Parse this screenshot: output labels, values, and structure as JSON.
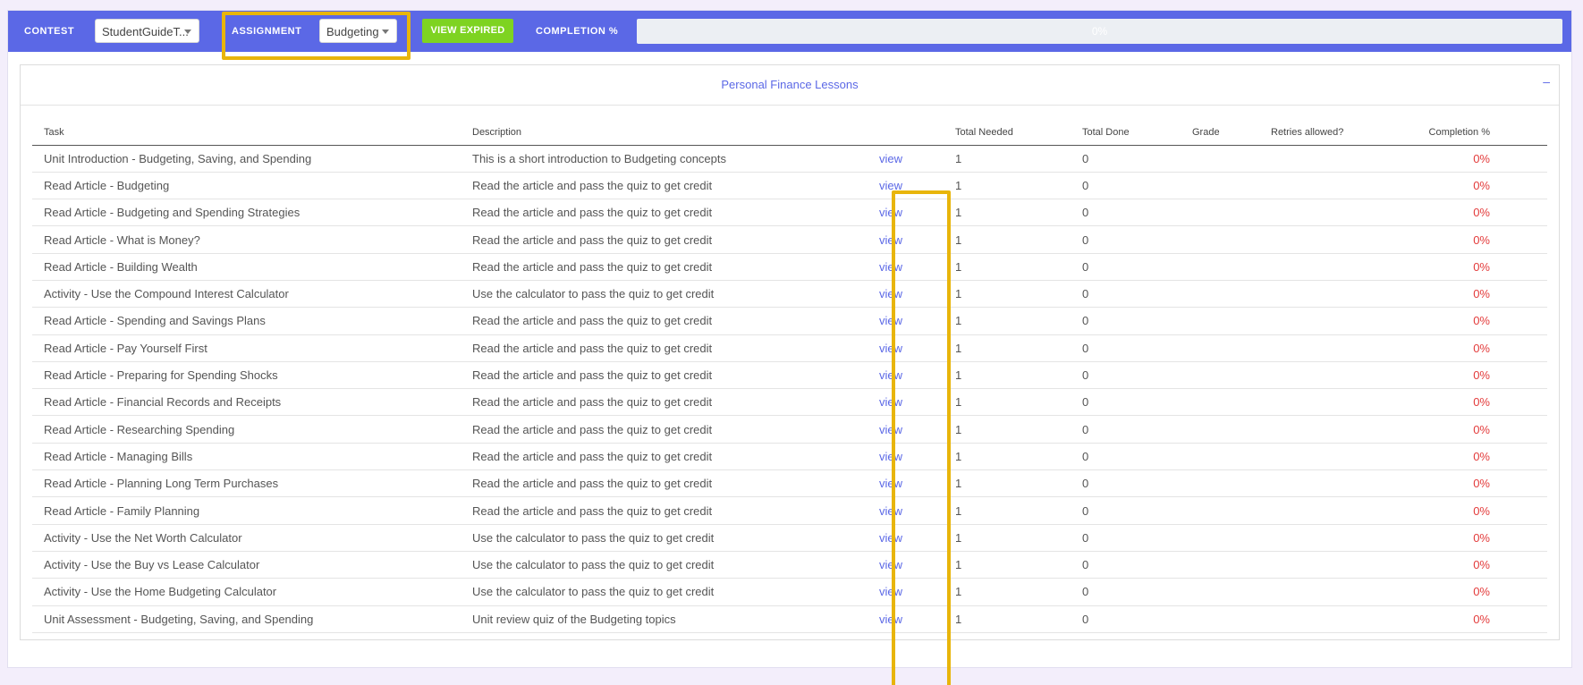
{
  "topbar": {
    "contest_label": "CONTEST",
    "contest_value": "StudentGuideT...",
    "assignment_label": "ASSIGNMENT",
    "assignment_value": "Budgeting",
    "view_expired_label": "VIEW EXPIRED",
    "completion_label": "COMPLETION %",
    "completion_value": "0%",
    "completion_fraction": 0
  },
  "panel": {
    "title": "Personal Finance Lessons",
    "collapse_symbol": "–"
  },
  "table": {
    "headers": [
      "Task",
      "Description",
      "",
      "Total Needed",
      "Total Done",
      "Grade",
      "Retries allowed?",
      "Completion %"
    ],
    "rows": [
      {
        "task": "Unit Introduction - Budgeting, Saving, and Spending",
        "description": "This is a short introduction to Budgeting concepts",
        "link": "view",
        "needed": "1",
        "done": "0",
        "grade": "",
        "retries": "",
        "completion": "0%"
      },
      {
        "task": "Read Article - Budgeting",
        "description": "Read the article and pass the quiz to get credit",
        "link": "view",
        "needed": "1",
        "done": "0",
        "grade": "",
        "retries": "",
        "completion": "0%"
      },
      {
        "task": "Read Article - Budgeting and Spending Strategies",
        "description": "Read the article and pass the quiz to get credit",
        "link": "view",
        "needed": "1",
        "done": "0",
        "grade": "",
        "retries": "",
        "completion": "0%"
      },
      {
        "task": "Read Article - What is Money?",
        "description": "Read the article and pass the quiz to get credit",
        "link": "view",
        "needed": "1",
        "done": "0",
        "grade": "",
        "retries": "",
        "completion": "0%"
      },
      {
        "task": "Read Article - Building Wealth",
        "description": "Read the article and pass the quiz to get credit",
        "link": "view",
        "needed": "1",
        "done": "0",
        "grade": "",
        "retries": "",
        "completion": "0%"
      },
      {
        "task": "Activity - Use the Compound Interest Calculator",
        "description": "Use the calculator to pass the quiz to get credit",
        "link": "view",
        "needed": "1",
        "done": "0",
        "grade": "",
        "retries": "",
        "completion": "0%"
      },
      {
        "task": "Read Article - Spending and Savings Plans",
        "description": "Read the article and pass the quiz to get credit",
        "link": "view",
        "needed": "1",
        "done": "0",
        "grade": "",
        "retries": "",
        "completion": "0%"
      },
      {
        "task": "Read Article - Pay Yourself First",
        "description": "Read the article and pass the quiz to get credit",
        "link": "view",
        "needed": "1",
        "done": "0",
        "grade": "",
        "retries": "",
        "completion": "0%"
      },
      {
        "task": "Read Article - Preparing for Spending Shocks",
        "description": "Read the article and pass the quiz to get credit",
        "link": "view",
        "needed": "1",
        "done": "0",
        "grade": "",
        "retries": "",
        "completion": "0%"
      },
      {
        "task": "Read Article - Financial Records and Receipts",
        "description": "Read the article and pass the quiz to get credit",
        "link": "view",
        "needed": "1",
        "done": "0",
        "grade": "",
        "retries": "",
        "completion": "0%"
      },
      {
        "task": "Read Article - Researching Spending",
        "description": "Read the article and pass the quiz to get credit",
        "link": "view",
        "needed": "1",
        "done": "0",
        "grade": "",
        "retries": "",
        "completion": "0%"
      },
      {
        "task": "Read Article - Managing Bills",
        "description": "Read the article and pass the quiz to get credit",
        "link": "view",
        "needed": "1",
        "done": "0",
        "grade": "",
        "retries": "",
        "completion": "0%"
      },
      {
        "task": "Read Article - Planning Long Term Purchases",
        "description": "Read the article and pass the quiz to get credit",
        "link": "view",
        "needed": "1",
        "done": "0",
        "grade": "",
        "retries": "",
        "completion": "0%"
      },
      {
        "task": "Read Article - Family Planning",
        "description": "Read the article and pass the quiz to get credit",
        "link": "view",
        "needed": "1",
        "done": "0",
        "grade": "",
        "retries": "",
        "completion": "0%"
      },
      {
        "task": "Activity - Use the Net Worth Calculator",
        "description": "Use the calculator to pass the quiz to get credit",
        "link": "view",
        "needed": "1",
        "done": "0",
        "grade": "",
        "retries": "",
        "completion": "0%"
      },
      {
        "task": "Activity - Use the Buy vs Lease Calculator",
        "description": "Use the calculator to pass the quiz to get credit",
        "link": "view",
        "needed": "1",
        "done": "0",
        "grade": "",
        "retries": "",
        "completion": "0%"
      },
      {
        "task": "Activity - Use the Home Budgeting Calculator",
        "description": "Use the calculator to pass the quiz to get credit",
        "link": "view",
        "needed": "1",
        "done": "0",
        "grade": "",
        "retries": "",
        "completion": "0%"
      },
      {
        "task": "Unit Assessment - Budgeting, Saving, and Spending",
        "description": "Unit review quiz of the Budgeting topics",
        "link": "view",
        "needed": "1",
        "done": "0",
        "grade": "",
        "retries": "",
        "completion": "0%"
      }
    ]
  },
  "colors": {
    "accent": "#5b68e6",
    "highlight": "#e8b50b",
    "button_green": "#7ed321",
    "completion_red": "#e33b3b"
  }
}
